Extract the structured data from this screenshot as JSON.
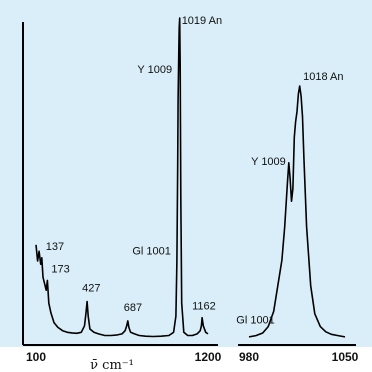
{
  "chart_data": [
    {
      "type": "line",
      "panel": "left",
      "x_ticks": [
        "100",
        "1200"
      ],
      "xlim": [
        100,
        1200
      ],
      "xlabel": "ν̄  cm⁻¹",
      "series": [
        {
          "x": [
            100,
            110,
            120,
            130,
            137,
            145,
            155,
            165,
            173,
            182,
            195,
            215,
            240,
            270,
            300,
            330,
            360,
            390,
            410,
            420,
            427,
            434,
            445,
            470,
            500,
            540,
            580,
            620,
            650,
            670,
            680,
            687,
            694,
            705,
            730,
            760,
            800,
            850,
            900,
            950,
            980,
            995,
            1001,
            1006,
            1009,
            1013,
            1016,
            1019,
            1022,
            1026,
            1032,
            1045,
            1070,
            1100,
            1130,
            1150,
            1158,
            1162,
            1170,
            1185,
            1200
          ],
          "y": [
            0.3,
            0.25,
            0.28,
            0.24,
            0.26,
            0.2,
            0.18,
            0.16,
            0.19,
            0.12,
            0.09,
            0.06,
            0.045,
            0.035,
            0.03,
            0.028,
            0.027,
            0.03,
            0.05,
            0.09,
            0.125,
            0.08,
            0.04,
            0.03,
            0.025,
            0.02,
            0.02,
            0.022,
            0.025,
            0.035,
            0.05,
            0.065,
            0.045,
            0.03,
            0.025,
            0.02,
            0.018,
            0.017,
            0.018,
            0.02,
            0.03,
            0.08,
            0.25,
            0.55,
            0.75,
            0.9,
            0.97,
            1.0,
            0.85,
            0.45,
            0.12,
            0.03,
            0.02,
            0.02,
            0.025,
            0.035,
            0.05,
            0.075,
            0.05,
            0.03,
            0.025
          ]
        }
      ],
      "annotations": [
        {
          "text": "137",
          "x": 137,
          "y": 0.26
        },
        {
          "text": "173",
          "x": 173,
          "y": 0.19
        },
        {
          "text": "427",
          "x": 427,
          "y": 0.125
        },
        {
          "text": "687",
          "x": 687,
          "y": 0.065
        },
        {
          "text": "1162",
          "x": 1162,
          "y": 0.075
        },
        {
          "text": "Gl 1001",
          "x": 1001,
          "y": 0.27
        },
        {
          "text": "Y 1009",
          "x": 1009,
          "y": 0.83
        },
        {
          "text": "1019 An",
          "x": 1019,
          "y": 1.0
        }
      ]
    },
    {
      "type": "line",
      "panel": "right",
      "x_ticks": [
        "980",
        "1050"
      ],
      "xlim": [
        980,
        1050
      ],
      "xlabel": "",
      "series": [
        {
          "x": [
            980,
            985,
            990,
            994,
            998,
            1001,
            1004,
            1006,
            1008,
            1009,
            1010,
            1011,
            1012,
            1013,
            1014,
            1015,
            1016,
            1017,
            1018,
            1019,
            1020,
            1022,
            1025,
            1028,
            1032,
            1036,
            1040,
            1045,
            1050
          ],
          "y": [
            0.02,
            0.025,
            0.035,
            0.06,
            0.12,
            0.22,
            0.32,
            0.45,
            0.62,
            0.7,
            0.64,
            0.55,
            0.6,
            0.8,
            0.86,
            0.9,
            0.97,
            1.0,
            0.96,
            0.88,
            0.72,
            0.45,
            0.22,
            0.11,
            0.06,
            0.04,
            0.03,
            0.025,
            0.02
          ]
        }
      ],
      "annotations": [
        {
          "text": "Gl 1001",
          "x": 1001,
          "y": 0.22
        },
        {
          "text": "Y 1009",
          "x": 1009,
          "y": 0.7
        },
        {
          "text": "1018 An",
          "x": 1018,
          "y": 1.0
        }
      ]
    }
  ]
}
